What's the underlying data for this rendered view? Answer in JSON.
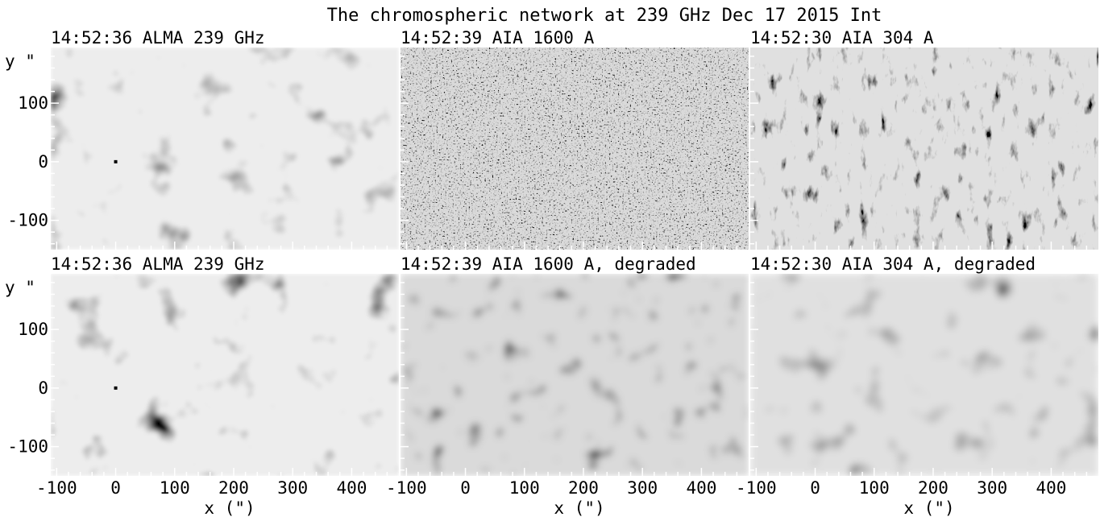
{
  "figure": {
    "title": "The chromospheric network at 239 GHz Dec 17 2015 Int",
    "y_axis_label": "y \"",
    "x_axis_label": "x (\")",
    "x_range": [
      -110,
      480
    ],
    "y_range": [
      -150,
      195
    ],
    "x_ticks": [
      -100,
      0,
      100,
      200,
      300,
      400
    ],
    "y_ticks": [
      -100,
      0,
      100
    ],
    "panels": [
      {
        "title": "14:52:36 ALMA 239 GHz",
        "row": 0,
        "col": 0,
        "texture": "alma",
        "marker": [
          0,
          0
        ]
      },
      {
        "title": "14:52:39 AIA 1600 A",
        "row": 0,
        "col": 1,
        "texture": "aia1600"
      },
      {
        "title": "14:52:30 AIA 304 A",
        "row": 0,
        "col": 2,
        "texture": "aia304"
      },
      {
        "title": "14:52:36 ALMA 239 GHz",
        "row": 1,
        "col": 0,
        "texture": "alma",
        "marker": [
          0,
          0
        ]
      },
      {
        "title": "14:52:39 AIA 1600 A, degraded",
        "row": 1,
        "col": 1,
        "texture": "aia1600-degraded"
      },
      {
        "title": "14:52:30 AIA 304 A, degraded",
        "row": 1,
        "col": 2,
        "texture": "aia304-degraded"
      }
    ]
  }
}
